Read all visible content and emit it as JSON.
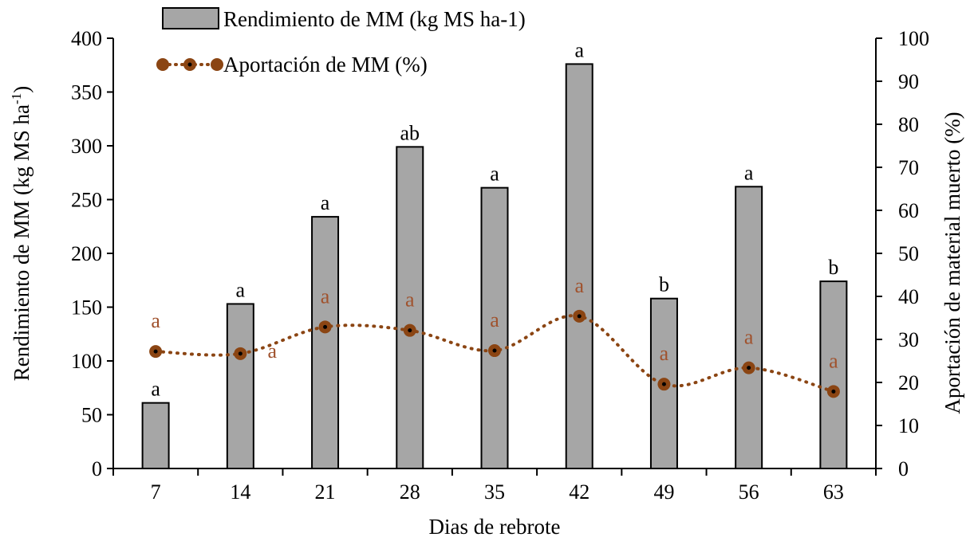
{
  "chart_data": {
    "type": "bar",
    "categories": [
      "7",
      "14",
      "21",
      "28",
      "35",
      "42",
      "49",
      "56",
      "63"
    ],
    "xlabel": "Dias de rebrote",
    "ylabel_left": "Rendimiento de MM (kg MS ha",
    "ylabel_left_sup": "-1",
    "ylabel_left_close": ")",
    "ylabel_right": "Aportación de material muerto (%)",
    "ylim_left": [
      0,
      400
    ],
    "yticks_left": [
      0,
      50,
      100,
      150,
      200,
      250,
      300,
      350,
      400
    ],
    "ylim_right": [
      0,
      100
    ],
    "yticks_right": [
      0,
      10,
      20,
      30,
      40,
      50,
      60,
      70,
      80,
      90,
      100
    ],
    "grid": false,
    "legend_position": "top-left",
    "series": [
      {
        "name": "Rendimiento de MM (kg MS ha-1)",
        "type": "bar",
        "axis": "left",
        "values": [
          61,
          153,
          234,
          299,
          261,
          376,
          158,
          262,
          174
        ],
        "labels": [
          "a",
          "a",
          "a",
          "ab",
          "a",
          "a",
          "b",
          "a",
          "b"
        ],
        "color": "#a6a6a6",
        "edge_color": "#000000"
      },
      {
        "name": "Aportación de MM (%)",
        "type": "line",
        "axis": "right",
        "values": [
          27.2,
          26.7,
          32.9,
          32.1,
          27.4,
          35.4,
          19.6,
          23.4,
          17.9
        ],
        "labels": [
          "a",
          "a",
          "a",
          "a",
          "a",
          "a",
          "a",
          "a",
          "a"
        ],
        "color": "#8b4513",
        "marker_color": "#8b4513",
        "label_color": "#a0522d"
      }
    ]
  }
}
